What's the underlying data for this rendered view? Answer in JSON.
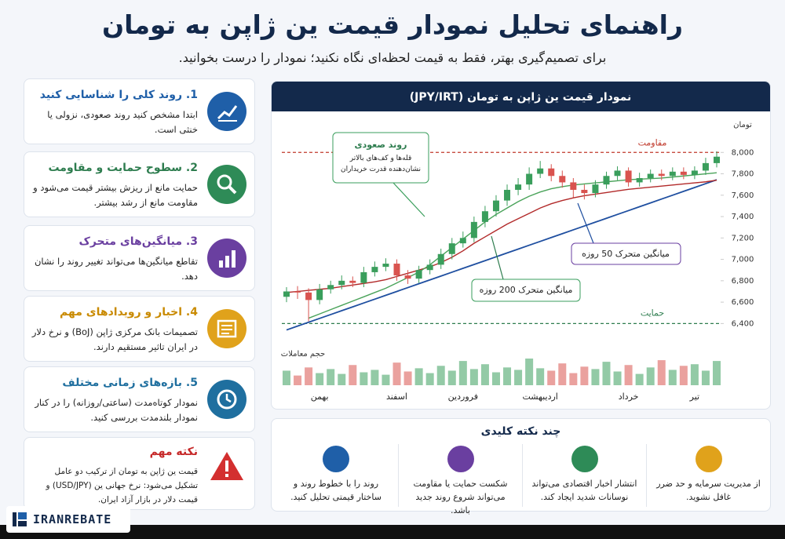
{
  "header": {
    "title": "راهنمای تحلیل نمودار قیمت ین ژاپن به تومان",
    "subtitle": "برای تصمیم‌گیری بهتر، فقط به قیمت لحظه‌ای نگاه نکنید؛ نمودار را درست بخوانید."
  },
  "cards": [
    {
      "title": "1. روند کلی را شناسایی کنید",
      "text": "ابتدا مشخص کنید روند صعودی، نزولی یا خنثی است."
    },
    {
      "title": "2. سطوح حمایت و مقاومت",
      "text": "حمایت مانع از ریزش بیشتر قیمت می‌شود و مقاومت مانع از رشد بیشتر."
    },
    {
      "title": "3. میانگین‌های متحرک",
      "text": "تقاطع میانگین‌ها می‌تواند تغییر روند را نشان دهد."
    },
    {
      "title": "4. اخبار و رویدادهای مهم",
      "text": "تصمیمات بانک مرکزی ژاپن (BoJ) و نرخ دلار در ایران تاثیر مستقیم دارند."
    },
    {
      "title": "5. بازه‌های زمانی مختلف",
      "text": "نمودار کوتاه‌مدت (ساعتی/روزانه) را در کنار نمودار بلندمدت بررسی کنید."
    }
  ],
  "warning": {
    "title": "نکته مهم",
    "text": "قیمت ین ژاپن به تومان از ترکیب دو عامل تشکیل می‌شود: نرخ جهانی ین (USD/JPY) و قیمت دلار در بازار آزاد ایران."
  },
  "chart_data": {
    "type": "candlestick",
    "title": "نمودار قیمت ین ژاپن به تومان (JPY/IRT)",
    "y_label": "تومان",
    "ylim": [
      6300,
      8200
    ],
    "yticks": [
      {
        "value": 6400,
        "label": "6,400"
      },
      {
        "value": 6600,
        "label": "6,600"
      },
      {
        "value": 6800,
        "label": "6,800"
      },
      {
        "value": 7000,
        "label": "7,000"
      },
      {
        "value": 7200,
        "label": "7,200"
      },
      {
        "value": 7400,
        "label": "7,400"
      },
      {
        "value": 7600,
        "label": "7,600"
      },
      {
        "value": 7800,
        "label": "7,800"
      },
      {
        "value": 8000,
        "label": "8,000"
      }
    ],
    "categories": [
      null,
      null,
      null,
      "بهمن",
      null,
      null,
      null,
      null,
      null,
      null,
      "اسفند",
      null,
      null,
      null,
      null,
      null,
      "فروردین",
      null,
      null,
      null,
      null,
      null,
      null,
      "اردیبهشت",
      null,
      null,
      null,
      null,
      null,
      null,
      null,
      "خرداد",
      null,
      null,
      null,
      null,
      null,
      "تیر",
      null,
      null
    ],
    "up_color": "#3a9e5c",
    "down_color": "#d9534f",
    "open": [
      6650,
      6700,
      6690,
      6620,
      6720,
      6760,
      6800,
      6780,
      6880,
      6930,
      6960,
      6850,
      6820,
      6900,
      6950,
      7050,
      7150,
      7200,
      7350,
      7450,
      7550,
      7650,
      7700,
      7800,
      7850,
      7780,
      7720,
      7650,
      7620,
      7700,
      7780,
      7830,
      7720,
      7760,
      7800,
      7780,
      7820,
      7790,
      7830,
      7900
    ],
    "high": [
      6740,
      6750,
      6730,
      6770,
      6800,
      6850,
      6840,
      6930,
      6980,
      7010,
      7000,
      6900,
      6940,
      7000,
      7100,
      7200,
      7260,
      7400,
      7500,
      7600,
      7700,
      7760,
      7860,
      7920,
      7890,
      7830,
      7760,
      7700,
      7740,
      7820,
      7870,
      7860,
      7810,
      7840,
      7840,
      7860,
      7860,
      7870,
      7950,
      8010
    ],
    "low": [
      6600,
      6630,
      6420,
      6580,
      6680,
      6720,
      6740,
      6740,
      6840,
      6890,
      6800,
      6770,
      6780,
      6860,
      6910,
      7000,
      7110,
      7160,
      7300,
      7400,
      7500,
      7600,
      7650,
      7760,
      7730,
      7670,
      7580,
      7560,
      7580,
      7660,
      7740,
      7680,
      7680,
      7720,
      7740,
      7740,
      7750,
      7750,
      7790,
      7860
    ],
    "close": [
      6700,
      6690,
      6620,
      6720,
      6760,
      6800,
      6780,
      6880,
      6930,
      6960,
      6850,
      6820,
      6900,
      6950,
      7050,
      7150,
      7200,
      7350,
      7450,
      7550,
      7650,
      7700,
      7800,
      7850,
      7780,
      7720,
      7650,
      7620,
      7700,
      7780,
      7830,
      7720,
      7760,
      7800,
      7780,
      7820,
      7790,
      7830,
      7900,
      7960
    ],
    "volume": {
      "name": "حجم معاملات",
      "values": [
        18,
        12,
        22,
        15,
        20,
        14,
        25,
        16,
        19,
        13,
        28,
        17,
        21,
        15,
        24,
        18,
        30,
        20,
        26,
        16,
        22,
        19,
        33,
        21,
        18,
        27,
        15,
        23,
        20,
        29,
        17,
        25,
        14,
        22,
        31,
        19,
        24,
        26,
        18,
        30
      ]
    },
    "series": [
      {
        "name": "میانگین متحرک 50 روزه",
        "color": "#b22a2a",
        "values": [
          6690,
          6700,
          6710,
          6720,
          6730,
          6745,
          6760,
          6775,
          6790,
          6810,
          6840,
          6870,
          6900,
          6930,
          6970,
          7020,
          7080,
          7150,
          7210,
          7270,
          7330,
          7380,
          7430,
          7480,
          7520,
          7550,
          7575,
          7595,
          7610,
          7625,
          7640,
          7655,
          7665,
          7675,
          7685,
          7695,
          7705,
          7715,
          7725,
          7740
        ]
      },
      {
        "name": "میانگین متحرک 200 روزه",
        "color": "#4aa35a",
        "values": [
          null,
          null,
          6450,
          6490,
          6530,
          6570,
          6610,
          6650,
          6690,
          6730,
          6780,
          6830,
          6880,
          6950,
          7030,
          7110,
          7190,
          7270,
          7350,
          7420,
          7480,
          7540,
          7590,
          7630,
          7660,
          7680,
          7695,
          7705,
          7715,
          7725,
          7735,
          7745,
          7750,
          7755,
          7760,
          7770,
          7780,
          7790,
          7800,
          7810
        ]
      }
    ],
    "trendline": {
      "color": "#1f4fa0",
      "values": [
        6340,
        6376,
        6412,
        6448,
        6484,
        6520,
        6556,
        6592,
        6628,
        6664,
        6700,
        6736,
        6772,
        6808,
        6844,
        6880,
        6916,
        6952,
        6988,
        7024,
        7060,
        7096,
        7132,
        7168,
        7204,
        7240,
        7276,
        7312,
        7348,
        7384,
        7420,
        7456,
        7492,
        7528,
        7564,
        7600,
        7636,
        7672,
        7708,
        7744
      ]
    },
    "resistance": {
      "label": "مقاومت",
      "value": 8000,
      "color": "#c0392b"
    },
    "support": {
      "label": "حمایت",
      "value": 6400,
      "color": "#2e7d4f"
    },
    "annotation": {
      "title": "روند صعودی",
      "text": "قله‌ها و کف‌های بالاتر نشان‌دهنده قدرت خریداران"
    }
  },
  "key_points": {
    "title": "چند نکته کلیدی",
    "items": [
      "از مدیریت سرمایه و حد ضرر غافل نشوید.",
      "انتشار اخبار اقتصادی می‌تواند نوسانات شدید ایجاد کند.",
      "شکست حمایت یا مقاومت می‌تواند شروع روند جدید باشد.",
      "روند را با خطوط روند و ساختار قیمتی تحلیل کنید."
    ]
  },
  "brand": "IRANREBATE"
}
